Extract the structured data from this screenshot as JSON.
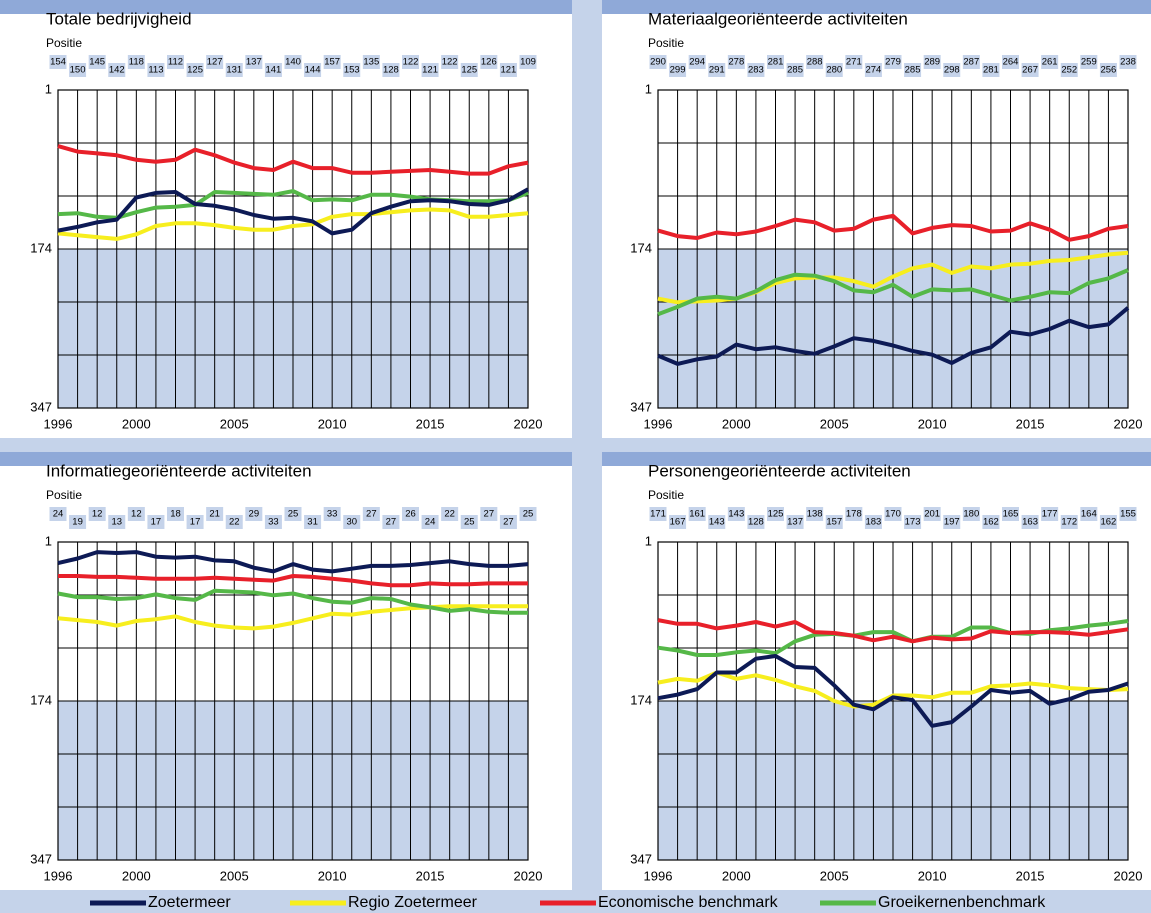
{
  "legend": [
    {
      "name": "Zoetermeer",
      "color": "#0d1a55"
    },
    {
      "name": "Regio Zoetermeer",
      "color": "#f7ee1e"
    },
    {
      "name": "Economische benchmark",
      "color": "#e8202a"
    },
    {
      "name": "Groeikernenbenchmark",
      "color": "#55b848"
    }
  ],
  "chart_data": [
    {
      "type": "line",
      "title": "Totale bedrijvigheid",
      "ylabel": "Positie",
      "x": [
        1996,
        1997,
        1998,
        1999,
        2000,
        2001,
        2002,
        2003,
        2004,
        2005,
        2006,
        2007,
        2008,
        2009,
        2010,
        2011,
        2012,
        2013,
        2014,
        2015,
        2016,
        2017,
        2018,
        2019,
        2020
      ],
      "xlim": [
        1996,
        2020
      ],
      "xticks": [
        1996,
        2000,
        2005,
        2010,
        2015,
        2020
      ],
      "ylim": [
        1,
        347
      ],
      "yticks": [
        1,
        174,
        347
      ],
      "y_inverted": true,
      "series": [
        {
          "values": [
            154,
            150,
            145,
            142,
            118,
            113,
            112,
            125,
            127,
            131,
            137,
            141,
            140,
            144,
            157,
            153,
            135,
            128,
            122,
            121,
            122,
            125,
            126,
            121,
            109
          ]
        },
        {
          "values": [
            157,
            159,
            161,
            163,
            158,
            149,
            146,
            146,
            148,
            151,
            153,
            153,
            149,
            147,
            139,
            136,
            136,
            134,
            132,
            131,
            132,
            139,
            139,
            137,
            135
          ]
        },
        {
          "values": [
            62,
            68,
            70,
            72,
            77,
            79,
            77,
            66,
            72,
            80,
            86,
            88,
            79,
            86,
            86,
            91,
            91,
            90,
            89,
            88,
            90,
            92,
            92,
            84,
            80
          ]
        },
        {
          "values": [
            136,
            135,
            139,
            140,
            134,
            129,
            128,
            126,
            112,
            113,
            114,
            115,
            111,
            121,
            120,
            121,
            115,
            115,
            117,
            120,
            121,
            122,
            122,
            121,
            113
          ]
        }
      ]
    },
    {
      "type": "line",
      "title": "Materiaalgeoriënteerde activiteiten",
      "ylabel": "Positie",
      "x": [
        1996,
        1997,
        1998,
        1999,
        2000,
        2001,
        2002,
        2003,
        2004,
        2005,
        2006,
        2007,
        2008,
        2009,
        2010,
        2011,
        2012,
        2013,
        2014,
        2015,
        2016,
        2017,
        2018,
        2019,
        2020
      ],
      "xlim": [
        1996,
        2020
      ],
      "xticks": [
        1996,
        2000,
        2005,
        2010,
        2015,
        2020
      ],
      "ylim": [
        1,
        347
      ],
      "yticks": [
        1,
        174,
        347
      ],
      "y_inverted": true,
      "series": [
        {
          "values": [
            290,
            299,
            294,
            291,
            278,
            283,
            281,
            285,
            288,
            280,
            271,
            274,
            279,
            285,
            289,
            298,
            287,
            281,
            264,
            267,
            261,
            252,
            259,
            256,
            238
          ]
        },
        {
          "values": [
            228,
            232,
            231,
            230,
            228,
            221,
            211,
            206,
            205,
            205,
            209,
            215,
            204,
            195,
            191,
            200,
            193,
            195,
            191,
            190,
            187,
            186,
            183,
            180,
            178
          ]
        },
        {
          "values": [
            154,
            160,
            162,
            156,
            158,
            155,
            149,
            142,
            145,
            154,
            152,
            142,
            138,
            157,
            151,
            148,
            149,
            155,
            154,
            146,
            153,
            164,
            160,
            152,
            149
          ]
        },
        {
          "values": [
            245,
            237,
            228,
            226,
            228,
            220,
            208,
            202,
            203,
            209,
            219,
            221,
            213,
            226,
            218,
            219,
            218,
            224,
            230,
            226,
            221,
            222,
            211,
            206,
            197
          ]
        }
      ]
    },
    {
      "type": "line",
      "title": "Informatiegeoriënteerde activiteiten",
      "ylabel": "Positie",
      "x": [
        1996,
        1997,
        1998,
        1999,
        2000,
        2001,
        2002,
        2003,
        2004,
        2005,
        2006,
        2007,
        2008,
        2009,
        2010,
        2011,
        2012,
        2013,
        2014,
        2015,
        2016,
        2017,
        2018,
        2019,
        2020
      ],
      "xlim": [
        1996,
        2020
      ],
      "xticks": [
        1996,
        2000,
        2005,
        2010,
        2015,
        2020
      ],
      "ylim": [
        1,
        347
      ],
      "yticks": [
        1,
        174,
        347
      ],
      "y_inverted": true,
      "series": [
        {
          "values": [
            24,
            19,
            12,
            13,
            12,
            17,
            18,
            17,
            21,
            22,
            29,
            33,
            25,
            31,
            33,
            30,
            27,
            27,
            26,
            24,
            22,
            25,
            27,
            27,
            25
          ]
        },
        {
          "values": [
            84,
            86,
            88,
            92,
            87,
            85,
            82,
            88,
            92,
            94,
            95,
            93,
            89,
            84,
            79,
            80,
            77,
            75,
            73,
            72,
            71,
            71,
            71,
            71,
            71
          ]
        },
        {
          "values": [
            38,
            38,
            39,
            39,
            40,
            41,
            41,
            41,
            40,
            41,
            42,
            43,
            38,
            39,
            41,
            43,
            46,
            48,
            48,
            46,
            47,
            47,
            46,
            46,
            46
          ]
        },
        {
          "values": [
            57,
            61,
            61,
            63,
            62,
            58,
            62,
            64,
            54,
            55,
            56,
            59,
            57,
            62,
            66,
            67,
            62,
            63,
            69,
            72,
            76,
            74,
            77,
            78,
            78
          ]
        }
      ]
    },
    {
      "type": "line",
      "title": "Personengeoriënteerde activiteiten",
      "ylabel": "Positie",
      "x": [
        1996,
        1997,
        1998,
        1999,
        2000,
        2001,
        2002,
        2003,
        2004,
        2005,
        2006,
        2007,
        2008,
        2009,
        2010,
        2011,
        2012,
        2013,
        2014,
        2015,
        2016,
        2017,
        2018,
        2019,
        2020
      ],
      "xlim": [
        1996,
        2020
      ],
      "xticks": [
        1996,
        2000,
        2005,
        2010,
        2015,
        2020
      ],
      "ylim": [
        1,
        347
      ],
      "yticks": [
        1,
        174,
        347
      ],
      "y_inverted": true,
      "series": [
        {
          "values": [
            171,
            167,
            161,
            143,
            143,
            128,
            125,
            137,
            138,
            157,
            178,
            183,
            170,
            173,
            201,
            197,
            180,
            162,
            165,
            163,
            177,
            172,
            164,
            162,
            155
          ]
        },
        {
          "values": [
            154,
            150,
            152,
            143,
            150,
            146,
            151,
            158,
            163,
            174,
            180,
            178,
            168,
            168,
            170,
            165,
            165,
            158,
            157,
            155,
            157,
            160,
            161,
            162,
            161
          ]
        },
        {
          "values": [
            86,
            90,
            90,
            95,
            92,
            88,
            93,
            88,
            99,
            100,
            103,
            108,
            104,
            109,
            105,
            107,
            106,
            98,
            100,
            99,
            99,
            100,
            102,
            99,
            96
          ]
        },
        {
          "values": [
            116,
            119,
            124,
            124,
            121,
            119,
            122,
            109,
            102,
            101,
            103,
            99,
            99,
            109,
            104,
            104,
            94,
            94,
            100,
            101,
            97,
            95,
            92,
            90,
            87
          ]
        }
      ]
    }
  ]
}
